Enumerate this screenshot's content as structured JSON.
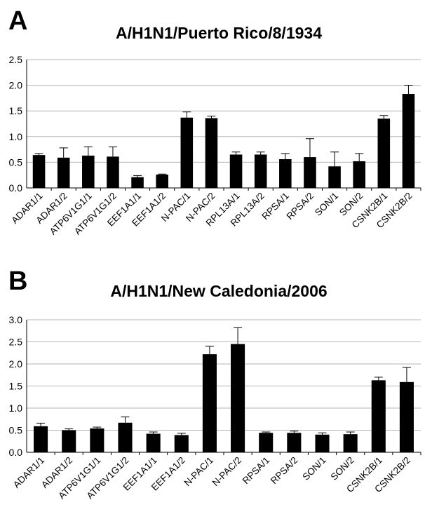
{
  "chart_data": [
    {
      "type": "bar",
      "panel": "A",
      "title": "A/H1N1/Puerto Rico/8/1934",
      "xlabel": "",
      "ylabel": "",
      "ylim": [
        0,
        2.5
      ],
      "yticks": [
        "0.0",
        "0.5",
        "1.0",
        "1.5",
        "2.0",
        "2.5"
      ],
      "grid": true,
      "categories": [
        "ADAR1/1",
        "ADAR1/2",
        "ATP6V1G1/1",
        "ATP6V1G1/2",
        "EEF1A1/1",
        "EEF1A1/2",
        "N-PAC/1",
        "N-PAC/2",
        "RPL13A/1",
        "RPL13A/2",
        "RPSA/1",
        "RPSA/2",
        "SON/1",
        "SON/2",
        "CSNK2B/1",
        "CSNK2B/2"
      ],
      "values": [
        0.64,
        0.59,
        0.63,
        0.61,
        0.21,
        0.26,
        1.37,
        1.36,
        0.65,
        0.65,
        0.56,
        0.6,
        0.42,
        0.52,
        1.35,
        1.83
      ],
      "errors": [
        0.03,
        0.19,
        0.17,
        0.19,
        0.03,
        0.01,
        0.11,
        0.04,
        0.05,
        0.05,
        0.11,
        0.36,
        0.28,
        0.15,
        0.06,
        0.17
      ],
      "color": "#000000"
    },
    {
      "type": "bar",
      "panel": "B",
      "title": "A/H1N1/New Caledonia/2006",
      "xlabel": "",
      "ylabel": "",
      "ylim": [
        0,
        3.0
      ],
      "yticks": [
        "0.0",
        "0.5",
        "1.0",
        "1.5",
        "2.0",
        "2.5",
        "3.0"
      ],
      "grid": true,
      "categories": [
        "ADAR1/1",
        "ADAR1/2",
        "ATP6V1G1/1",
        "ATP6V1G1/2",
        "EEF1A1/1",
        "EEF1A1/2",
        "N-PAC/1",
        "N-PAC/2",
        "RPSA/1",
        "RPSA/2",
        "SON/1",
        "SON/2",
        "CSNK2B/1",
        "CSNK2B/2"
      ],
      "values": [
        0.59,
        0.5,
        0.54,
        0.67,
        0.42,
        0.39,
        2.22,
        2.45,
        0.44,
        0.44,
        0.4,
        0.41,
        1.63,
        1.59
      ],
      "errors": [
        0.07,
        0.03,
        0.03,
        0.13,
        0.04,
        0.04,
        0.18,
        0.37,
        0.02,
        0.04,
        0.04,
        0.05,
        0.07,
        0.33
      ],
      "color": "#000000"
    }
  ]
}
